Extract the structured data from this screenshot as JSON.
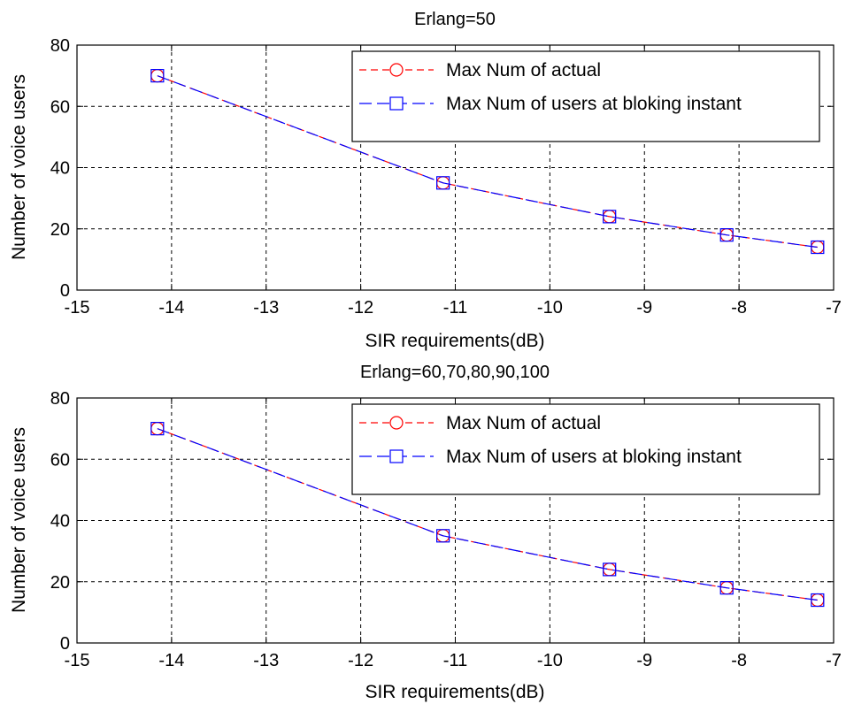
{
  "chart_data": [
    {
      "type": "line",
      "title": "Erlang=50",
      "xlabel": "SIR requirements(dB)",
      "ylabel": "Number of voice users",
      "xlim": [
        -15,
        -7
      ],
      "ylim": [
        0,
        80
      ],
      "xticks": [
        -15,
        -14,
        -13,
        -12,
        -11,
        -10,
        -9,
        -8,
        -7
      ],
      "yticks": [
        0,
        20,
        40,
        60,
        80
      ],
      "xtick_labels": [
        "-15",
        "-14",
        "-13",
        "-12",
        "-11",
        "-10",
        "-9",
        "-8",
        "-7"
      ],
      "ytick_labels": [
        "0",
        "20",
        "40",
        "60",
        "80"
      ],
      "grid": true,
      "legend_position": "top-right",
      "series": [
        {
          "name": "Max Num of actual",
          "color": "#ff0000",
          "marker": "circle",
          "line_style": "dashed",
          "x": [
            -14.15,
            -11.13,
            -9.37,
            -8.13,
            -7.17
          ],
          "y": [
            70,
            35,
            24,
            18,
            14
          ]
        },
        {
          "name": "Max Num of users at bloking instant",
          "color": "#0000ff",
          "marker": "square",
          "line_style": "long-dashed",
          "x": [
            -14.15,
            -11.13,
            -9.37,
            -8.13,
            -7.17
          ],
          "y": [
            70,
            35,
            24,
            18,
            14
          ]
        }
      ]
    },
    {
      "type": "line",
      "title": "Erlang=60,70,80,90,100",
      "xlabel": "SIR requirements(dB)",
      "ylabel": "Number of voice users",
      "xlim": [
        -15,
        -7
      ],
      "ylim": [
        0,
        80
      ],
      "xticks": [
        -15,
        -14,
        -13,
        -12,
        -11,
        -10,
        -9,
        -8,
        -7
      ],
      "yticks": [
        0,
        20,
        40,
        60,
        80
      ],
      "xtick_labels": [
        "-15",
        "-14",
        "-13",
        "-12",
        "-11",
        "-10",
        "-9",
        "-8",
        "-7"
      ],
      "ytick_labels": [
        "0",
        "20",
        "40",
        "60",
        "80"
      ],
      "grid": true,
      "legend_position": "top-right",
      "series": [
        {
          "name": "Max Num of actual",
          "color": "#ff0000",
          "marker": "circle",
          "line_style": "dashed",
          "x": [
            -14.15,
            -11.13,
            -9.37,
            -8.13,
            -7.17
          ],
          "y": [
            70,
            35,
            24,
            18,
            14
          ]
        },
        {
          "name": "Max Num of users at bloking instant",
          "color": "#0000ff",
          "marker": "square",
          "line_style": "long-dashed",
          "x": [
            -14.15,
            -11.13,
            -9.37,
            -8.13,
            -7.17
          ],
          "y": [
            70,
            35,
            24,
            18,
            14
          ]
        }
      ]
    }
  ]
}
